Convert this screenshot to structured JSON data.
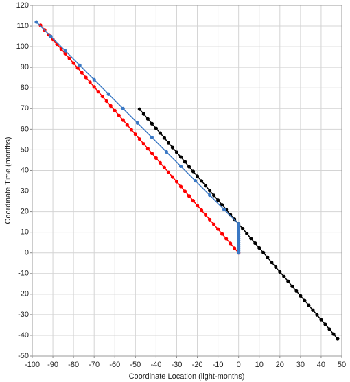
{
  "chart_data": {
    "type": "line",
    "xlabel": "Coordinate Location (light-months)",
    "ylabel": "Coordinate Time (months)",
    "xlim": [
      -100,
      50
    ],
    "ylim": [
      -50,
      120
    ],
    "xticks": [
      -100,
      -90,
      -80,
      -70,
      -60,
      -50,
      -40,
      -30,
      -20,
      -10,
      0,
      10,
      20,
      30,
      40,
      50
    ],
    "yticks": [
      -50,
      -40,
      -30,
      -20,
      -10,
      0,
      10,
      20,
      30,
      40,
      50,
      60,
      70,
      80,
      90,
      100,
      110,
      120
    ],
    "grid": true,
    "series": [
      {
        "color": "#000000",
        "x": [
          -48,
          -46,
          -44,
          -42,
          -40,
          -38,
          -36,
          -34,
          -32,
          -30,
          -28,
          -26,
          -24,
          -22,
          -20,
          -18,
          -16,
          -14,
          -12,
          -10,
          -8,
          -6,
          -4,
          -2,
          0,
          2,
          4,
          6,
          8,
          10,
          12,
          14,
          16,
          18,
          20,
          22,
          24,
          26,
          28,
          30,
          32,
          34,
          36,
          38,
          40,
          42,
          44,
          46,
          48
        ],
        "values": [
          69.7,
          67.4,
          65.0,
          62.7,
          60.4,
          58.1,
          55.8,
          53.4,
          51.1,
          48.8,
          46.5,
          44.2,
          41.8,
          39.5,
          37.2,
          34.9,
          32.6,
          30.2,
          27.9,
          25.6,
          23.3,
          21.0,
          18.6,
          16.3,
          14.0,
          11.7,
          9.4,
          7.0,
          4.7,
          2.4,
          0.1,
          -2.2,
          -4.6,
          -6.9,
          -9.2,
          -11.5,
          -13.8,
          -16.2,
          -18.5,
          -20.8,
          -23.1,
          -25.4,
          -27.8,
          -30.1,
          -32.4,
          -34.7,
          -37.0,
          -39.4,
          -41.7
        ]
      },
      {
        "color": "#ff0000",
        "x": [
          -96,
          -94,
          -92,
          -90,
          -88,
          -86,
          -84,
          -82,
          -80,
          -78,
          -76,
          -74,
          -72,
          -70,
          -68,
          -66,
          -64,
          -62,
          -60,
          -58,
          -56,
          -54,
          -52,
          -50,
          -48,
          -46,
          -44,
          -42,
          -40,
          -38,
          -36,
          -34,
          -32,
          -30,
          -28,
          -26,
          -24,
          -22,
          -20,
          -18,
          -16,
          -14,
          -12,
          -10,
          -8,
          -6,
          -4,
          -2,
          0
        ],
        "values": [
          110.4,
          108.1,
          105.8,
          103.5,
          101.2,
          98.9,
          96.6,
          94.3,
          92,
          89.7,
          87.4,
          85.1,
          82.8,
          80.5,
          78.2,
          75.9,
          73.6,
          71.3,
          69,
          66.7,
          64.4,
          62.1,
          59.8,
          57.5,
          55.2,
          52.9,
          50.6,
          48.3,
          46,
          43.7,
          41.4,
          39.1,
          36.8,
          34.5,
          32.2,
          29.9,
          27.6,
          25.3,
          23,
          20.7,
          18.4,
          16.1,
          13.8,
          11.5,
          9.2,
          6.9,
          4.6,
          2.3,
          0
        ]
      },
      {
        "color": "#3a78c4",
        "x": [
          0,
          0,
          0,
          0,
          0,
          0,
          0,
          0,
          0,
          0,
          0,
          0,
          0,
          0,
          0,
          -7,
          -14,
          -21,
          -28,
          -35,
          -42,
          -49,
          -56,
          -63,
          -70,
          -77,
          -84,
          -91,
          -98
        ],
        "values": [
          0,
          1,
          2,
          3,
          4,
          5,
          6,
          7,
          8,
          9,
          10,
          11,
          12,
          13,
          14,
          21,
          28,
          35,
          42,
          49,
          56,
          63,
          70,
          77,
          84,
          91,
          98,
          105,
          112
        ]
      }
    ]
  }
}
